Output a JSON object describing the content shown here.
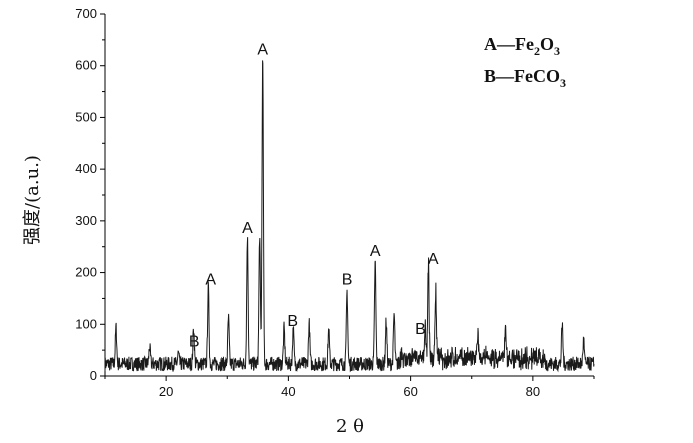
{
  "chart_data": {
    "type": "line",
    "title": "",
    "xlabel": "2 θ",
    "ylabel": "强度/(a.u.)",
    "xlim": [
      10,
      90
    ],
    "ylim": [
      0,
      700
    ],
    "x_ticks": [
      "20",
      "40",
      "60",
      "80"
    ],
    "y_ticks": [
      "0",
      "100",
      "200",
      "300",
      "400",
      "500",
      "600",
      "700"
    ],
    "grid": false,
    "legend_position": "top-right",
    "legend": [
      {
        "key": "A",
        "sep": "—",
        "formula": [
          "Fe",
          "2",
          "O",
          "3"
        ]
      },
      {
        "key": "B",
        "sep": "—",
        "formula": [
          "FeCO",
          "3"
        ]
      }
    ],
    "peak_labels": [
      {
        "label": "B",
        "x": 24.6,
        "y": 45
      },
      {
        "label": "A",
        "x": 27.3,
        "y": 165
      },
      {
        "label": "A",
        "x": 33.3,
        "y": 265
      },
      {
        "label": "A",
        "x": 35.8,
        "y": 610
      },
      {
        "label": "B",
        "x": 40.7,
        "y": 85
      },
      {
        "label": "B",
        "x": 49.6,
        "y": 165
      },
      {
        "label": "A",
        "x": 54.2,
        "y": 220
      },
      {
        "label": "B",
        "x": 61.6,
        "y": 70
      },
      {
        "label": "A",
        "x": 63.7,
        "y": 205
      }
    ],
    "series": [
      {
        "peaks": [
          {
            "x": 11.8,
            "y": 92
          },
          {
            "x": 17.3,
            "y": 55
          },
          {
            "x": 22.0,
            "y": 42
          },
          {
            "x": 24.5,
            "y": 92
          },
          {
            "x": 26.9,
            "y": 170
          },
          {
            "x": 30.2,
            "y": 110
          },
          {
            "x": 33.3,
            "y": 268
          },
          {
            "x": 35.3,
            "y": 270
          },
          {
            "x": 35.8,
            "y": 610
          },
          {
            "x": 39.3,
            "y": 90
          },
          {
            "x": 40.8,
            "y": 88
          },
          {
            "x": 43.4,
            "y": 100
          },
          {
            "x": 46.6,
            "y": 88
          },
          {
            "x": 49.6,
            "y": 162
          },
          {
            "x": 54.2,
            "y": 218
          },
          {
            "x": 56.0,
            "y": 105
          },
          {
            "x": 57.3,
            "y": 118
          },
          {
            "x": 62.4,
            "y": 78
          },
          {
            "x": 62.9,
            "y": 205
          },
          {
            "x": 64.1,
            "y": 150
          },
          {
            "x": 71.0,
            "y": 60
          },
          {
            "x": 75.5,
            "y": 75
          },
          {
            "x": 84.8,
            "y": 98
          },
          {
            "x": 88.3,
            "y": 68
          }
        ],
        "baseline": 22,
        "noise_amplitude": 28
      }
    ]
  }
}
